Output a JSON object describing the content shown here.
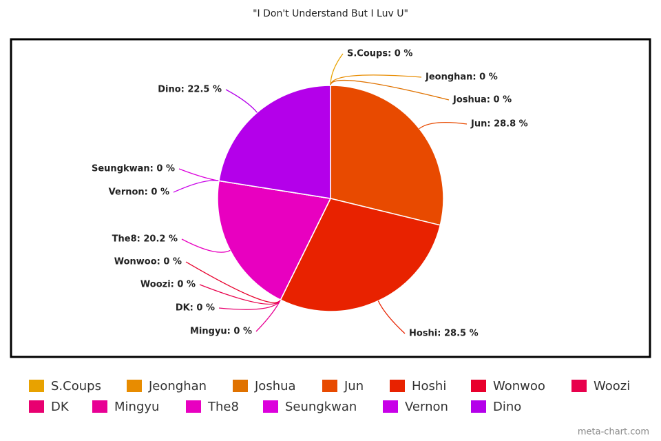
{
  "chart_data": {
    "type": "pie",
    "title": "\"I Don't Understand But I Luv U\"",
    "categories": [
      "S.Coups",
      "Jeonghan",
      "Joshua",
      "Jun",
      "Hoshi",
      "Wonwoo",
      "Woozi",
      "DK",
      "Mingyu",
      "The8",
      "Seungkwan",
      "Vernon",
      "Dino"
    ],
    "values": [
      0,
      0,
      0,
      28.8,
      28.5,
      0,
      0,
      0,
      0,
      20.2,
      0,
      0,
      22.5
    ],
    "value_labels": [
      "S.Coups: 0 %",
      "Jeonghan: 0 %",
      "Joshua: 0 %",
      "Jun: 28.8 %",
      "Hoshi: 28.5 %",
      "Wonwoo: 0 %",
      "Woozi: 0 %",
      "DK: 0 %",
      "Mingyu: 0 %",
      "The8: 20.2 %",
      "Seungkwan: 0 %",
      "Vernon: 0 %",
      "Dino: 22.5 %"
    ],
    "colors": [
      "#e8a200",
      "#e88c00",
      "#e07200",
      "#e84a00",
      "#e82200",
      "#e8002c",
      "#e8004c",
      "#e80070",
      "#e80094",
      "#e800c0",
      "#dc00dc",
      "#c800e8",
      "#b400ea"
    ],
    "legend": "bottom",
    "watermark": "meta-chart.com"
  }
}
